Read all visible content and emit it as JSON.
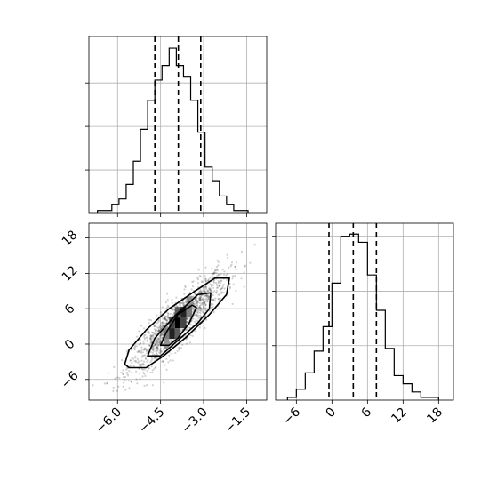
{
  "chart_data": [
    {
      "type": "histogram",
      "panel": "top-left",
      "variable": "x",
      "xlim": [
        -7.0,
        -0.8
      ],
      "grid": true,
      "bin_edges": [
        -6.7,
        -6.45,
        -6.2,
        -5.95,
        -5.7,
        -5.45,
        -5.2,
        -4.95,
        -4.7,
        -4.45,
        -4.2,
        -3.95,
        -3.7,
        -3.45,
        -3.2,
        -2.95,
        -2.7,
        -2.45,
        -2.2,
        -1.95,
        -1.7,
        -1.45
      ],
      "counts": [
        1,
        1,
        3,
        5,
        10,
        18,
        29,
        39,
        46,
        51,
        57,
        51,
        47,
        39,
        28,
        16,
        11,
        6,
        3,
        1,
        1
      ],
      "count_ticks": [
        15,
        30,
        45
      ],
      "count_max": 61,
      "quantiles": [
        -4.7,
        -3.88,
        -3.1
      ]
    },
    {
      "type": "histogram",
      "panel": "bottom-right",
      "variable": "y",
      "xlim": [
        -9.5,
        20.5
      ],
      "xticks": [
        "−6",
        "0",
        "6",
        "12",
        "18"
      ],
      "xtick_values": [
        -6,
        0,
        6,
        12,
        18
      ],
      "grid": true,
      "bin_edges": [
        -7.5,
        -6.0,
        -4.5,
        -3.0,
        -1.5,
        0.0,
        1.5,
        3.0,
        4.5,
        6.0,
        7.5,
        9.0,
        10.5,
        12.0,
        13.5,
        15.0,
        16.5,
        18.0
      ],
      "counts": [
        1,
        4,
        10,
        18,
        27,
        43,
        60,
        61,
        58,
        46,
        33,
        19,
        9,
        6,
        3,
        1,
        1
      ],
      "count_ticks": [
        20,
        40,
        60
      ],
      "count_max": 65,
      "quantiles": [
        -0.5,
        3.6,
        7.5
      ]
    },
    {
      "type": "scatter",
      "panel": "bottom-left",
      "x_variable": "x",
      "y_variable": "y",
      "xlim": [
        -7.0,
        -0.8
      ],
      "ylim": [
        -9.5,
        20.5
      ],
      "xticks": [
        "−6.0",
        "−4.5",
        "−3.0",
        "−1.5"
      ],
      "xtick_values": [
        -6.0,
        -4.5,
        -3.0,
        -1.5
      ],
      "yticks": [
        "−6",
        "0",
        "6",
        "12",
        "18"
      ],
      "ytick_values": [
        -6,
        0,
        6,
        12,
        18
      ],
      "grid": true,
      "point_count": 1400,
      "mean": [
        -3.9,
        3.6
      ],
      "sd": [
        0.85,
        4.2
      ],
      "correlation": 0.88,
      "density_cells": [
        {
          "x": -4.1,
          "y": 1.8,
          "level": 0.85
        },
        {
          "x": -3.9,
          "y": 3.6,
          "level": 1.0
        },
        {
          "x": -3.7,
          "y": 5.4,
          "level": 0.85
        },
        {
          "x": -4.1,
          "y": 3.6,
          "level": 0.7
        },
        {
          "x": -3.7,
          "y": 3.6,
          "level": 0.7
        },
        {
          "x": -3.9,
          "y": 1.8,
          "level": 0.6
        },
        {
          "x": -3.9,
          "y": 5.4,
          "level": 0.6
        },
        {
          "x": -4.3,
          "y": 1.8,
          "level": 0.45
        },
        {
          "x": -3.5,
          "y": 5.4,
          "level": 0.45
        },
        {
          "x": -4.3,
          "y": 0.0,
          "level": 0.35
        },
        {
          "x": -3.5,
          "y": 7.2,
          "level": 0.35
        }
      ],
      "contours": [
        {
          "name": "outer",
          "points": [
            [
              -5.75,
              -3.4
            ],
            [
              -5.6,
              -1.0
            ],
            [
              -5.0,
              2.4
            ],
            [
              -4.2,
              6.0
            ],
            [
              -3.3,
              9.0
            ],
            [
              -2.6,
              11.2
            ],
            [
              -2.1,
              11.2
            ],
            [
              -2.2,
              8.4
            ],
            [
              -2.8,
              5.0
            ],
            [
              -3.6,
              1.2
            ],
            [
              -4.4,
              -2.0
            ],
            [
              -5.0,
              -4.0
            ],
            [
              -5.6,
              -4.0
            ]
          ]
        },
        {
          "name": "middle",
          "points": [
            [
              -4.95,
              -2.0
            ],
            [
              -4.7,
              1.0
            ],
            [
              -4.0,
              4.8
            ],
            [
              -3.2,
              8.4
            ],
            [
              -2.75,
              8.7
            ],
            [
              -2.8,
              6.0
            ],
            [
              -3.2,
              3.6
            ],
            [
              -3.9,
              0.6
            ],
            [
              -4.5,
              -2.0
            ]
          ]
        },
        {
          "name": "inner",
          "points": [
            [
              -4.5,
              -0.2
            ],
            [
              -4.3,
              2.0
            ],
            [
              -3.9,
              5.0
            ],
            [
              -3.4,
              6.6
            ],
            [
              -3.25,
              6.2
            ],
            [
              -3.5,
              3.6
            ],
            [
              -3.9,
              1.0
            ],
            [
              -4.2,
              -0.2
            ]
          ]
        }
      ]
    }
  ]
}
